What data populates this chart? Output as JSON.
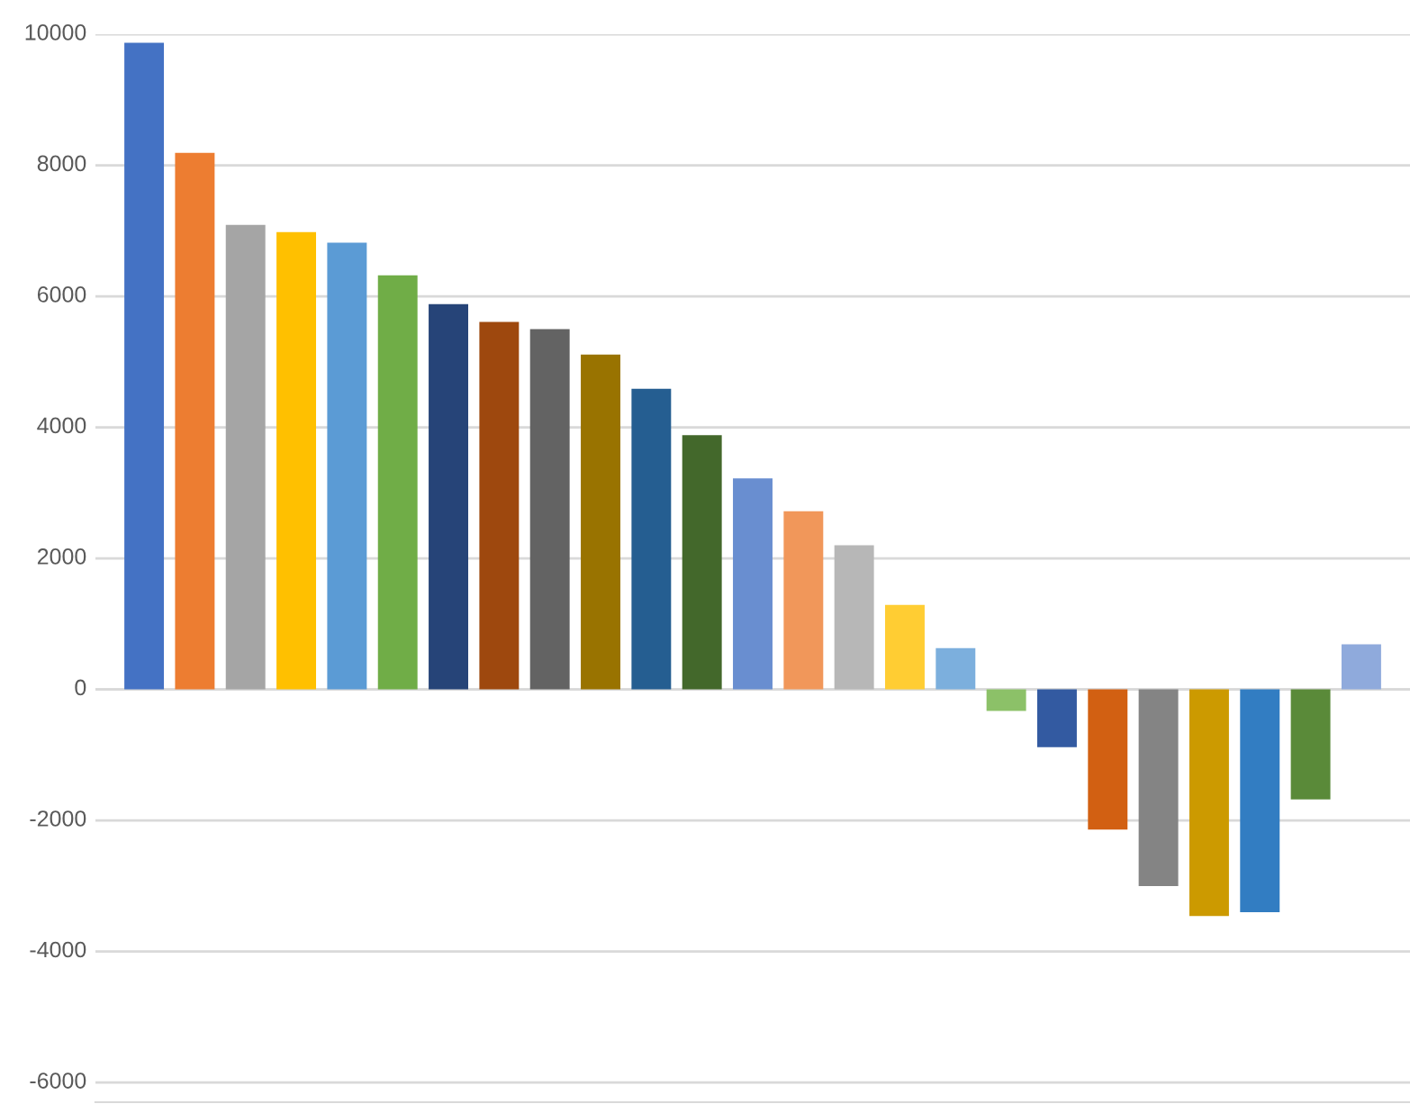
{
  "chart_data": {
    "type": "bar",
    "categories": [
      null,
      null,
      null,
      null,
      null,
      null,
      null,
      null,
      null,
      null,
      null,
      null,
      null,
      null,
      null,
      null,
      null,
      null,
      null,
      null,
      null,
      null,
      null,
      null,
      null
    ],
    "values": [
      9870,
      8190,
      7090,
      6980,
      6820,
      6320,
      5880,
      5610,
      5500,
      5110,
      4590,
      3880,
      3220,
      2720,
      2200,
      1290,
      630,
      -330,
      -880,
      -2140,
      -3000,
      -3460,
      -3400,
      -1680,
      690
    ],
    "colors": [
      "#4472c4",
      "#ed7d31",
      "#a5a5a5",
      "#ffc000",
      "#5b9bd5",
      "#70ad47",
      "#264478",
      "#9e480e",
      "#636363",
      "#997300",
      "#255e91",
      "#43682b",
      "#698ed0",
      "#f1975a",
      "#b7b7b7",
      "#ffcd33",
      "#7cafdd",
      "#8cc168",
      "#335aa1",
      "#d26012",
      "#848484",
      "#cc9a00",
      "#327dc2",
      "#5a8a39",
      "#8faadc"
    ],
    "ylim": [
      -6300,
      10000
    ],
    "yticks": [
      -6000,
      -4000,
      -2000,
      0,
      2000,
      4000,
      6000,
      8000,
      10000
    ],
    "grid": "y",
    "legend": false
  }
}
